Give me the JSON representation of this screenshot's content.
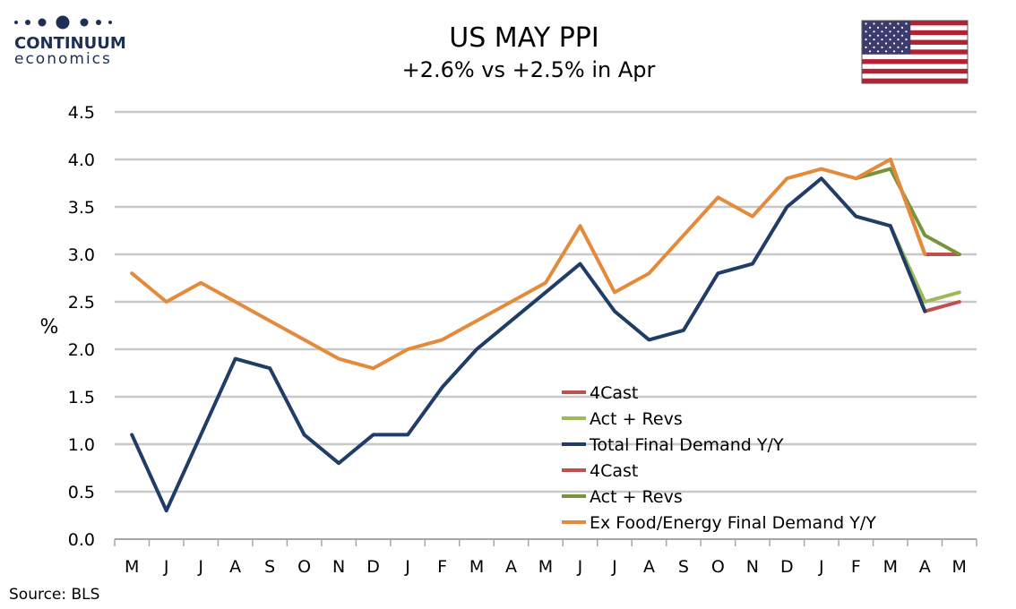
{
  "logo": {
    "line1": "CONTINUUM",
    "line2": "economics"
  },
  "header": {
    "title": "US MAY PPI",
    "subtitle": "+2.6% vs +2.5% in Apr"
  },
  "flag": {
    "icon": "us-flag-icon",
    "red": "#b22234",
    "white": "#ffffff",
    "blue": "#3c3b6e"
  },
  "source": "Source: BLS",
  "chart_data": {
    "type": "line",
    "title": "US MAY PPI",
    "subtitle": "+2.6% vs +2.5% in Apr",
    "xlabel": "",
    "ylabel": "%",
    "ylim": [
      0,
      4.5
    ],
    "yticks": [
      "0.0",
      "0.5",
      "1.0",
      "1.5",
      "2.0",
      "2.5",
      "3.0",
      "3.5",
      "4.0",
      "4.5"
    ],
    "ytick_values": [
      0,
      0.5,
      1,
      1.5,
      2,
      2.5,
      3,
      3.5,
      4,
      4.5
    ],
    "categories": [
      "M",
      "J",
      "J",
      "A",
      "S",
      "O",
      "N",
      "D",
      "J",
      "F",
      "M",
      "A",
      "M",
      "J",
      "J",
      "A",
      "S",
      "O",
      "N",
      "D",
      "J",
      "F",
      "M",
      "A",
      "M"
    ],
    "grid": "horizontal",
    "legend_position": "center-right",
    "series": [
      {
        "name": "4Cast",
        "color": "#c0504d",
        "values": [
          null,
          null,
          null,
          null,
          null,
          null,
          null,
          null,
          null,
          null,
          null,
          null,
          null,
          null,
          null,
          null,
          null,
          null,
          null,
          null,
          null,
          null,
          3.3,
          2.4,
          2.5
        ]
      },
      {
        "name": "Act + Revs",
        "color": "#9bbb59",
        "values": [
          null,
          null,
          null,
          null,
          null,
          null,
          null,
          null,
          null,
          null,
          null,
          null,
          null,
          null,
          null,
          null,
          null,
          null,
          null,
          null,
          null,
          null,
          3.3,
          2.5,
          2.6
        ]
      },
      {
        "name": "Total Final Demand Y/Y",
        "color": "#1f3d66",
        "values": [
          1.1,
          0.3,
          1.1,
          1.9,
          1.8,
          1.1,
          0.8,
          1.1,
          1.1,
          1.6,
          2.0,
          2.3,
          2.6,
          2.9,
          2.4,
          2.1,
          2.2,
          2.8,
          2.9,
          3.5,
          3.8,
          3.4,
          3.3,
          2.4,
          null
        ]
      },
      {
        "name": "4Cast",
        "color": "#c0504d",
        "values": [
          null,
          null,
          null,
          null,
          null,
          null,
          null,
          null,
          null,
          null,
          null,
          null,
          null,
          null,
          null,
          null,
          null,
          null,
          null,
          null,
          null,
          null,
          4.0,
          3.0,
          3.0
        ]
      },
      {
        "name": "Act + Revs",
        "color": "#77933c",
        "values": [
          null,
          null,
          null,
          null,
          null,
          null,
          null,
          null,
          null,
          null,
          null,
          null,
          null,
          null,
          null,
          null,
          null,
          null,
          null,
          null,
          null,
          3.8,
          3.9,
          3.2,
          3.0
        ]
      },
      {
        "name": "Ex Food/Energy Final Demand Y/Y",
        "color": "#e38b3a",
        "values": [
          2.8,
          2.5,
          2.7,
          2.5,
          2.3,
          2.1,
          1.9,
          1.8,
          2.0,
          2.1,
          2.3,
          2.5,
          2.7,
          3.3,
          2.6,
          2.8,
          3.2,
          3.6,
          3.4,
          3.8,
          3.9,
          3.8,
          4.0,
          3.0,
          null
        ]
      }
    ]
  }
}
